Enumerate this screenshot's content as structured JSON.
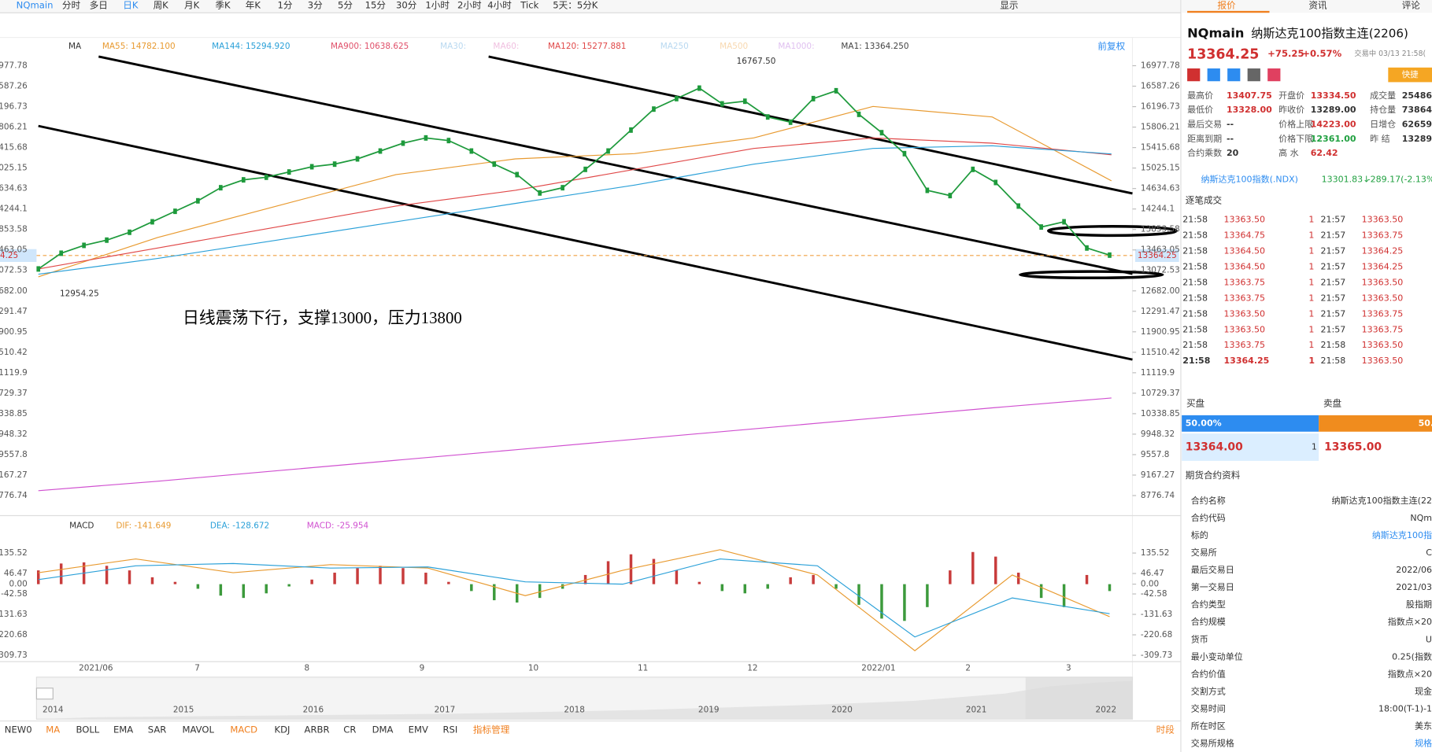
{
  "toolbar": {
    "symbol": "NQmain",
    "periods": [
      "分时",
      "多日",
      "日K",
      "周K",
      "月K",
      "季K",
      "年K",
      "1分",
      "3分",
      "5分",
      "15分",
      "30分",
      "1小时",
      "2小时",
      "4小时",
      "Tick",
      "5天：5分K"
    ],
    "display": "显示"
  },
  "chart": {
    "ma_legend": [
      {
        "text": "MA",
        "color": "#333"
      },
      {
        "text": "MA55: 14782.100",
        "color": "#e89a30"
      },
      {
        "text": "MA144: 15294.920",
        "color": "#2aa0d8"
      },
      {
        "text": "MA900: 10638.625",
        "color": "#e0506a"
      },
      {
        "text": "MA30:",
        "color": "#b8d8f0"
      },
      {
        "text": "MA60:",
        "color": "#f0c0e0"
      },
      {
        "text": "MA120: 15277.881",
        "color": "#e04848"
      },
      {
        "text": "MA250",
        "color": "#b8d8f0"
      },
      {
        "text": "MA500",
        "color": "#f8d8b0"
      },
      {
        "text": "MA1000:",
        "color": "#e0c0f0"
      },
      {
        "text": "MA1: 13364.250",
        "color": "#444"
      }
    ],
    "adjust": "前复权",
    "ylim": [
      8776.74,
      16977.78
    ],
    "yticks": [
      16977.78,
      16587.26,
      16196.73,
      15806.21,
      15415.68,
      15025.15,
      14634.63,
      14244.1,
      13853.58,
      13463.05,
      13072.53,
      {
        "value": 12682,
        "label": "12682.00"
      },
      12291.47,
      11900.95,
      11510.42,
      11119.9,
      10729.37,
      10338.85,
      9948.32,
      9557.8,
      9167.27,
      8776.74
    ],
    "current_price": 13364.25,
    "high_label": {
      "value": 16767.5,
      "label": "16767.50"
    },
    "low_label": 12954.25,
    "annotation": "日线震荡下行，支撑13000，压力13800",
    "closes": [
      13100,
      13400,
      13550,
      13650,
      13800,
      14000,
      14200,
      14400,
      14650,
      14800,
      14850,
      14950,
      15050,
      15100,
      15200,
      15350,
      15500,
      15600,
      15550,
      15350,
      15100,
      14900,
      14550,
      14650,
      15000,
      15350,
      15750,
      16150,
      16350,
      16550,
      16250,
      16300,
      16000,
      15900,
      16350,
      16500,
      16050,
      15700,
      15300,
      14600,
      14500,
      15000,
      14750,
      14300,
      13900,
      14000,
      13500,
      13364
    ],
    "close_color": "#1e9a3c",
    "ma_lines": [
      {
        "color": "#e89a30",
        "values": [
          12950,
          13700,
          14300,
          14900,
          15200,
          15300,
          15600,
          16200,
          16000,
          14782
        ]
      },
      {
        "color": "#e04848",
        "values": [
          13100,
          13500,
          13900,
          14300,
          14600,
          15000,
          15400,
          15600,
          15500,
          15277.881
        ]
      },
      {
        "color": "#2aa0d8",
        "values": [
          13000,
          13300,
          13650,
          14000,
          14350,
          14700,
          15100,
          15400,
          15450,
          15294.92
        ]
      },
      {
        "color": "#d050d0",
        "values": [
          8870,
          9050,
          9250,
          9450,
          9650,
          9850,
          10050,
          10250,
          10450,
          10638.625
        ]
      }
    ],
    "months": [
      "2021/06",
      "7",
      "8",
      "9",
      "10",
      "11",
      "12",
      "2022/01",
      "2",
      "3"
    ]
  },
  "macd": {
    "legend": [
      {
        "text": "MACD",
        "color": "#333"
      },
      {
        "text": "DIF: -141.649",
        "color": "#e89a30"
      },
      {
        "text": "DEA: -128.672",
        "color": "#2aa0d8"
      },
      {
        "text": "MACD: -25.954",
        "color": "#d050d0"
      }
    ],
    "ylim": [
      -309.73,
      135.52
    ],
    "yticks": [
      135.52,
      46.47,
      {
        "value": 0,
        "label": "0.00"
      },
      -42.58,
      -131.63,
      -220.68,
      -309.73
    ],
    "hist": [
      60,
      90,
      95,
      80,
      60,
      30,
      10,
      -20,
      -50,
      -60,
      -40,
      -10,
      20,
      50,
      70,
      80,
      70,
      50,
      10,
      -30,
      -70,
      -80,
      -60,
      -20,
      40,
      100,
      130,
      110,
      60,
      10,
      -30,
      -40,
      -20,
      30,
      40,
      -20,
      -90,
      -150,
      -160,
      -100,
      60,
      140,
      120,
      50,
      -60,
      -100,
      40,
      -30
    ],
    "up_color": "#c83c3c",
    "down_color": "#3c9a3c",
    "dif": {
      "color": "#e89a30",
      "values": [
        50,
        110,
        50,
        85,
        70,
        -50,
        60,
        150,
        40,
        -290,
        40,
        -141.649
      ]
    },
    "dea": {
      "color": "#2aa0d8",
      "values": [
        20,
        80,
        90,
        70,
        75,
        10,
        0,
        110,
        80,
        -230,
        -60,
        -128.672
      ]
    }
  },
  "navigator": {
    "years": [
      "2014",
      "2015",
      "2016",
      "2017",
      "2018",
      "2019",
      "2020",
      "2021",
      "2022"
    ]
  },
  "indicators": {
    "items": [
      "NEW0",
      "MA",
      "BOLL",
      "EMA",
      "SAR",
      "MAVOL",
      "MACD",
      "KDJ",
      "ARBR",
      "CR",
      "DMA",
      "EMV",
      "RSI",
      "指标管理"
    ],
    "period": "时段"
  },
  "sidebar": {
    "tabs": [
      "报价",
      "资讯",
      "评论"
    ],
    "symbol": "NQmain",
    "name": "纳斯达克100指数主连(2206)",
    "price": "13364.25",
    "change": "+75.25",
    "change_pct": "+0.57%",
    "status": "交易中 03/13 21:58(",
    "quick": "快捷",
    "stats": [
      [
        {
          "label": "最高价",
          "value": "13407.75",
          "color": "#d03030"
        },
        {
          "label": "开盘价",
          "value": "13334.50",
          "color": "#d03030"
        },
        {
          "label": "成交量",
          "value": "25486",
          "color": "#333"
        }
      ],
      [
        {
          "label": "最低价",
          "value": "13328.00",
          "color": "#d03030"
        },
        {
          "label": "昨收价",
          "value": "13289.00",
          "color": "#333"
        },
        {
          "label": "持仓量",
          "value": "73864",
          "color": "#333"
        }
      ],
      [
        {
          "label": "最后交易",
          "value": "--",
          "color": "#333"
        },
        {
          "label": "价格上限",
          "value": "14223.00",
          "color": "#d03030"
        },
        {
          "label": "日增仓",
          "value": "62659",
          "color": "#333"
        }
      ],
      [
        {
          "label": "距离到期",
          "value": "--",
          "color": "#333"
        },
        {
          "label": "价格下限",
          "value": "12361.00",
          "color": "#20a040"
        },
        {
          "label": "昨 结",
          "value": "13289.",
          "color": "#333"
        }
      ],
      [
        {
          "label": "合约乘数",
          "value": "20",
          "color": "#333"
        },
        {
          "label": "高 水",
          "value": "62.42",
          "color": "#d03030"
        }
      ]
    ],
    "index_name": "纳斯达克100指数(.NDX)",
    "index_price": "13301.83↓",
    "index_change": "-289.17(-2.13%",
    "trades_title": "逐笔成交",
    "trades": [
      [
        "21:58",
        "13363.50",
        "1",
        "21:57",
        "13363.50"
      ],
      [
        "21:58",
        "13364.75",
        "1",
        "21:57",
        "13363.75"
      ],
      [
        "21:58",
        "13364.50",
        "1",
        "21:57",
        "13364.25"
      ],
      [
        "21:58",
        "13364.50",
        "1",
        "21:57",
        "13364.25"
      ],
      [
        "21:58",
        "13363.75",
        "1",
        "21:57",
        "13363.50"
      ],
      [
        "21:58",
        "13363.75",
        "1",
        "21:57",
        "13363.50"
      ],
      [
        "21:58",
        "13363.50",
        "1",
        "21:57",
        "13363.75"
      ],
      [
        "21:58",
        "13363.50",
        "1",
        "21:57",
        "13363.75"
      ],
      [
        "21:58",
        "13363.75",
        "1",
        "21:58",
        "13363.50"
      ],
      [
        "21:58",
        "13364.25",
        "1",
        "21:58",
        "13363.50"
      ]
    ],
    "bid_label": "买盘",
    "ask_label": "卖盘",
    "bid_pct": "50.00%",
    "ask_pct": "50.",
    "bid_price": "13364.00",
    "bid_vol": "1",
    "ask_price": "13365.00",
    "contract_title": "期货合约资料",
    "contract": [
      [
        "合约名称",
        "纳斯达克100指数主连(22"
      ],
      [
        "合约代码",
        "NQm"
      ],
      [
        "标的",
        "纳斯达克100指"
      ],
      [
        "交易所",
        "C"
      ],
      [
        "最后交易日",
        "2022/06"
      ],
      [
        "第一交易日",
        "2021/03"
      ],
      [
        "合约类型",
        "股指期"
      ],
      [
        "合约规模",
        "指数点×20"
      ],
      [
        "货币",
        "U"
      ],
      [
        "最小变动单位",
        "0.25(指数"
      ],
      [
        "合约价值",
        "指数点×20"
      ],
      [
        "交割方式",
        "现金"
      ],
      [
        "交易时间",
        "18:00(T-1)-1"
      ],
      [
        "所在时区",
        "美东"
      ],
      [
        "交易所规格",
        "规格"
      ]
    ]
  }
}
